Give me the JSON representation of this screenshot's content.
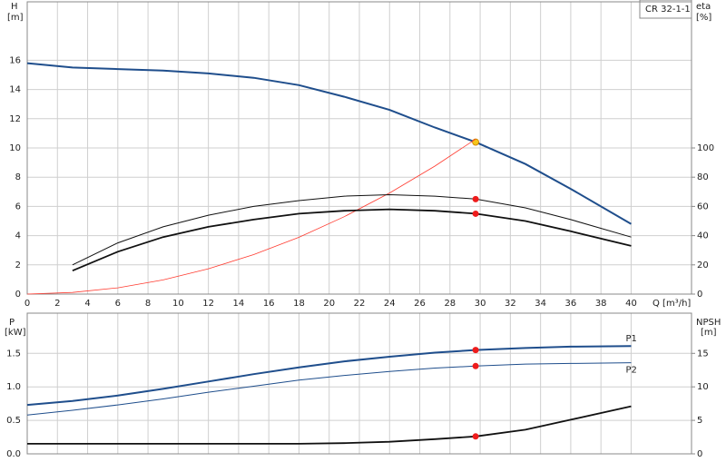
{
  "chart_data": [
    {
      "type": "line",
      "y_label": "H",
      "y_unit": "[m]",
      "y2_label": "eta",
      "y2_unit": "[%]",
      "x_label": "Q [m³/h]",
      "legend_box": "CR 32-1-1",
      "x": [
        0,
        3,
        6,
        9,
        12,
        15,
        18,
        21,
        24,
        27,
        29.7,
        33,
        36,
        40
      ],
      "xlim": [
        0,
        44
      ],
      "xticks": [
        0,
        2,
        4,
        6,
        8,
        10,
        12,
        14,
        16,
        18,
        20,
        22,
        24,
        26,
        28,
        30,
        32,
        34,
        36,
        38,
        40
      ],
      "ylim": [
        0,
        20
      ],
      "yticks": [
        0,
        2,
        4,
        6,
        8,
        10,
        12,
        14,
        16
      ],
      "y2lim": [
        0,
        200
      ],
      "y2ticks": [
        0,
        20,
        40,
        60,
        80,
        100
      ],
      "grid": true,
      "show_x_labels": true,
      "series": [
        {
          "color": "#1f4e8c",
          "width": 2,
          "values": [
            15.8,
            15.5,
            15.4,
            15.3,
            15.1,
            14.8,
            14.3,
            13.5,
            12.6,
            11.4,
            10.4,
            8.9,
            7.2,
            4.8
          ],
          "marker_index": 10,
          "marker_color": "#f5c518"
        },
        {
          "color": "#ff3b30",
          "width": 0.8,
          "values": [
            0,
            0.11,
            0.43,
            0.97,
            1.73,
            2.7,
            3.89,
            5.3,
            6.92,
            8.76,
            10.6,
            null,
            null,
            null
          ]
        },
        {
          "color": "#111111",
          "width": 1,
          "axis": "y2",
          "values": [
            null,
            20,
            35,
            46,
            54,
            60,
            64,
            67,
            68,
            67,
            65,
            59,
            51,
            39
          ],
          "marker_index": 10,
          "marker_color": "#ee1c1c"
        },
        {
          "color": "#111111",
          "width": 1.8,
          "axis": "y2",
          "values": [
            null,
            16,
            29,
            39,
            46,
            51,
            55,
            57,
            58,
            57,
            55,
            50,
            43,
            33
          ],
          "marker_index": 10,
          "marker_color": "#ee1c1c"
        }
      ]
    },
    {
      "type": "line",
      "y_label": "P",
      "y_unit": "[kW]",
      "y2_label": "NPSH",
      "y2_unit": "[m]",
      "x": [
        0,
        3,
        6,
        9,
        12,
        15,
        18,
        21,
        24,
        27,
        29.7,
        33,
        36,
        40
      ],
      "xlim": [
        0,
        44
      ],
      "xticks": [
        0,
        2,
        4,
        6,
        8,
        10,
        12,
        14,
        16,
        18,
        20,
        22,
        24,
        26,
        28,
        30,
        32,
        34,
        36,
        38,
        40
      ],
      "ylim": [
        0,
        2.1
      ],
      "yticks": [
        {
          "value": 0,
          "label": "0.0"
        },
        {
          "value": 0.5,
          "label": "0.5"
        },
        {
          "value": 1,
          "label": "1.0"
        },
        {
          "value": 1.5,
          "label": "1.5"
        }
      ],
      "y2lim": [
        0,
        21
      ],
      "y2ticks": [
        0,
        5,
        10,
        15
      ],
      "grid": true,
      "show_x_labels": false,
      "series": [
        {
          "name": "P1",
          "color": "#1f4e8c",
          "width": 2,
          "values": [
            0.73,
            0.79,
            0.87,
            0.97,
            1.08,
            1.19,
            1.29,
            1.38,
            1.45,
            1.51,
            1.55,
            1.58,
            1.6,
            1.61
          ],
          "marker_index": 10,
          "marker_color": "#ee1c1c"
        },
        {
          "name": "P2",
          "color": "#1f4e8c",
          "width": 1,
          "values": [
            0.58,
            0.65,
            0.73,
            0.82,
            0.92,
            1.01,
            1.1,
            1.17,
            1.23,
            1.28,
            1.31,
            1.34,
            1.35,
            1.36
          ],
          "marker_index": 10,
          "marker_color": "#ee1c1c"
        },
        {
          "color": "#111111",
          "width": 1.8,
          "axis": "y2",
          "values": [
            1.5,
            1.5,
            1.5,
            1.5,
            1.5,
            1.5,
            1.5,
            1.6,
            1.8,
            2.2,
            2.6,
            3.6,
            5.1,
            7.1
          ],
          "marker_index": 10,
          "marker_color": "#ee1c1c"
        }
      ]
    }
  ]
}
